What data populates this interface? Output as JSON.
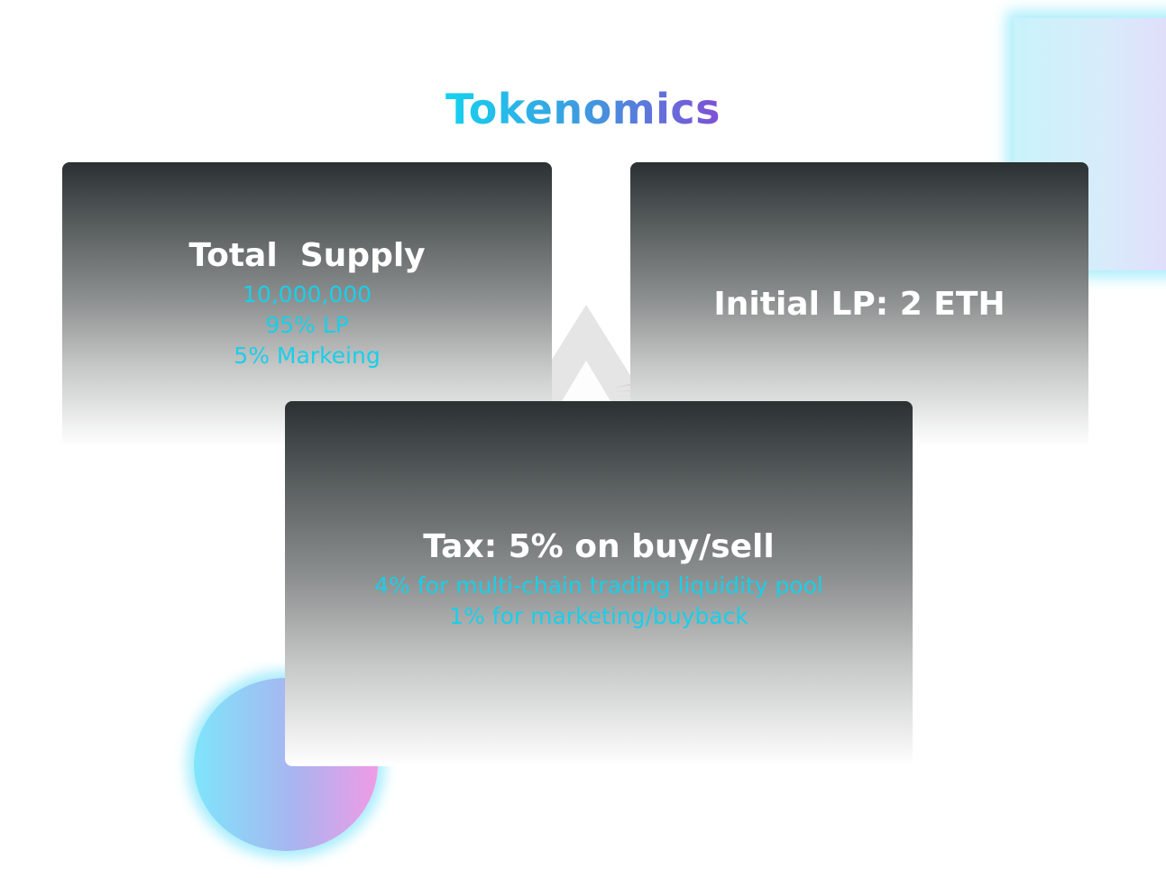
{
  "title": "Tokenomics",
  "cards": {
    "supply": {
      "title": "Total  Supply",
      "lines": [
        "10,000,000",
        "95% LP",
        "5% Markeing"
      ]
    },
    "lp": {
      "title": "Initial LP: 2 ETH"
    },
    "tax": {
      "title": "Tax: 5% on buy/sell",
      "lines": [
        "4% for multi-chain trading liquidity pool",
        "1% for marketing/buyback"
      ]
    }
  },
  "colors": {
    "title_gradient": [
      "#14d2ef",
      "#3e9be0",
      "#7f4fd6"
    ],
    "card_text": "#ffffff",
    "accent_text": "#19cfe9"
  },
  "icons": {
    "decorative_square": "gradient-square-icon",
    "decorative_circle": "gradient-circle-icon",
    "decorative_triangle": "triangle-logo-icon"
  }
}
